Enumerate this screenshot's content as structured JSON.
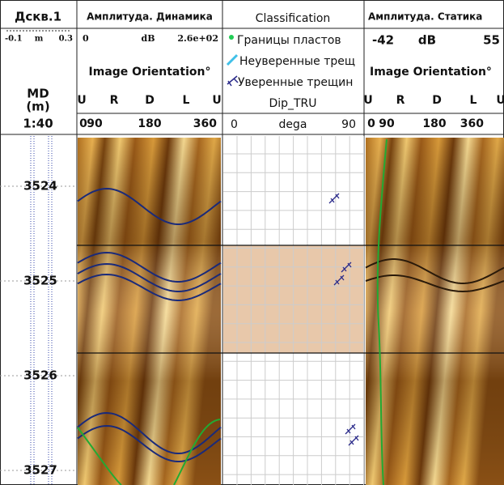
{
  "depth_track": {
    "title": "Дскв.1",
    "scale_min": "-0.1",
    "unit": "m",
    "scale_max": "0.3",
    "axis_label": "MD",
    "axis_unit": "(m)",
    "ratio": "1:40",
    "depths": [
      3524,
      3525,
      3526,
      3527
    ]
  },
  "track_dynamic": {
    "title": "Амплитуда. Динамика",
    "scale_min": "0",
    "unit": "dB",
    "scale_max": "2.6e+02",
    "orientation_label": "Image Orientation°",
    "directions": [
      "U",
      "R",
      "D",
      "L",
      "U"
    ],
    "degrees": [
      "0",
      "90",
      "180",
      "360"
    ]
  },
  "classification": {
    "title": "Classification",
    "legend": [
      "Границы пластов",
      "Неуверенные трещ",
      "Уверенные трещин"
    ],
    "curve": "Dip_TRU",
    "scale_min": "0",
    "unit": "dega",
    "scale_max": "90"
  },
  "track_static": {
    "title": "Амплитуда. Статика",
    "scale_min": "-42",
    "unit": "dB",
    "scale_max": "55",
    "orientation_label": "Image Orientation°",
    "directions": [
      "U",
      "R",
      "D",
      "L",
      "U"
    ],
    "degrees": [
      "0",
      "90",
      "180",
      "360"
    ]
  }
}
